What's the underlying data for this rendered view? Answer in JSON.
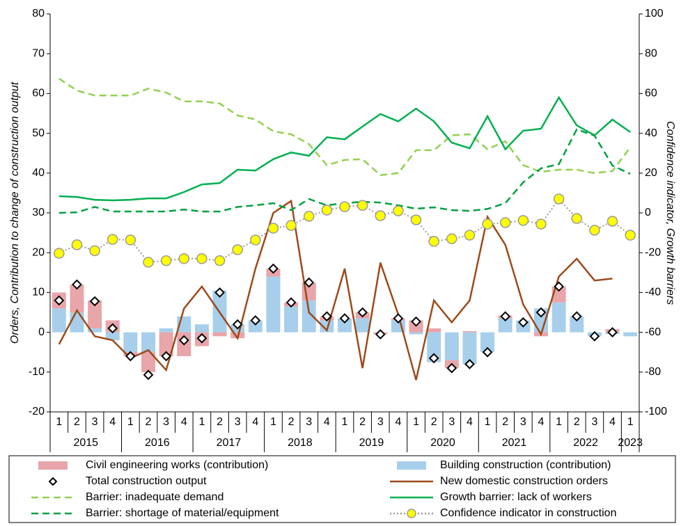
{
  "chart_data": {
    "type": "combo",
    "y_label": "Orders, Contribution to change of construction output",
    "y2_label": "Confidence indicator, Growth barriers",
    "categories": [
      "1",
      "2",
      "3",
      "4",
      "1",
      "2",
      "3",
      "4",
      "1",
      "2",
      "3",
      "4",
      "1",
      "2",
      "3",
      "4",
      "1",
      "2",
      "3",
      "4",
      "1",
      "2",
      "3",
      "4",
      "1",
      "2",
      "3",
      "4",
      "1",
      "2",
      "3",
      "4",
      "1"
    ],
    "years": [
      "2015",
      "2016",
      "2017",
      "2018",
      "2019",
      "2020",
      "2021",
      "2022",
      "2023"
    ],
    "ylim": [
      -20,
      80
    ],
    "yticks": [
      -20,
      -10,
      0,
      10,
      20,
      30,
      40,
      50,
      60,
      70,
      80
    ],
    "y2lim": [
      -100,
      100
    ],
    "y2ticks": [
      -100,
      -80,
      -60,
      -40,
      -20,
      0,
      20,
      40,
      60,
      80,
      100
    ],
    "series": [
      {
        "name": "Civil engineering works (contribution)",
        "type": "bar",
        "color": "#e8a5aa",
        "values": [
          4,
          7,
          7,
          3,
          -1,
          -5,
          -6,
          -6,
          -3.5,
          -1,
          -1.5,
          0,
          2,
          1,
          4.5,
          1,
          0,
          1.5,
          -0.5,
          0.5,
          3,
          1,
          -2,
          0.3,
          0,
          0.7,
          0,
          -1,
          4,
          0,
          0,
          0.8,
          0
        ]
      },
      {
        "name": "Building construction (contribution)",
        "type": "bar",
        "color": "#a7cfeb",
        "values": [
          6,
          5,
          1,
          -2,
          -5,
          -5,
          1,
          4,
          2,
          10.5,
          2,
          3,
          14,
          6.5,
          8,
          3,
          3.5,
          3.5,
          0,
          3,
          -0.5,
          -7.5,
          -7,
          -8,
          -5,
          3.5,
          3,
          6,
          7.5,
          4,
          -1,
          -0.5,
          -1
        ]
      },
      {
        "name": "Total construction output",
        "type": "marker",
        "color": "#000000",
        "values": [
          8,
          12,
          7.8,
          1,
          -6,
          -10.7,
          -6,
          -2,
          -1.5,
          10,
          2,
          3,
          16,
          7.5,
          12.5,
          4,
          3.5,
          5,
          -0.5,
          3.5,
          2.7,
          -6.5,
          -9,
          -8,
          -5,
          4,
          2.5,
          5,
          11.5,
          4,
          -1,
          0,
          null
        ]
      },
      {
        "name": "New domestic construction orders",
        "type": "line",
        "style": "solid",
        "color": "#9c4a1a",
        "values": [
          -3,
          5.5,
          -1,
          -2,
          -6.5,
          -4.5,
          -9.5,
          6,
          11.5,
          5,
          -1.5,
          16,
          30,
          33,
          5,
          0.5,
          16,
          -9,
          17.5,
          4.5,
          -12,
          8,
          2.5,
          8,
          29,
          22,
          7,
          -0.5,
          14,
          18.5,
          13,
          13.5,
          null
        ]
      },
      {
        "name": "Barrier: inadequate demand",
        "type": "line",
        "style": "dashed",
        "axis": "y2",
        "color": "#92d050",
        "values": [
          67.5,
          61.5,
          59,
          59,
          59,
          62.5,
          60.5,
          56,
          56,
          55,
          49,
          47,
          41,
          39.5,
          34.6,
          24,
          26.6,
          27,
          19,
          20,
          31.5,
          31.5,
          39,
          39.5,
          32,
          36,
          24,
          20.6,
          21.7,
          21.7,
          20,
          21,
          33
        ]
      },
      {
        "name": "Growth barrier: lack of workers",
        "type": "line",
        "style": "solid",
        "axis": "y2",
        "color": "#00b050",
        "values": [
          8.4,
          8,
          6.6,
          6.3,
          6.6,
          7.3,
          7.3,
          10.5,
          14.3,
          15,
          21.7,
          21.3,
          27,
          30.4,
          28.7,
          38,
          37,
          43.4,
          49.7,
          46,
          52.4,
          46,
          35.3,
          32.5,
          48.6,
          32,
          41.3,
          42.3,
          58,
          44,
          39,
          46.9,
          40.6
        ]
      },
      {
        "name": "Barrier: shortage of material/equipment",
        "type": "line",
        "style": "dashed",
        "axis": "y2",
        "color": "#00a040",
        "values": [
          0,
          0.3,
          3,
          0.7,
          0.7,
          0.7,
          0.7,
          1.7,
          0.7,
          0.7,
          3,
          3.8,
          4.9,
          1.4,
          7,
          3.8,
          4.9,
          5.6,
          5.2,
          3.8,
          2.1,
          2.8,
          1.4,
          1,
          2,
          4.9,
          15.4,
          22.4,
          24.5,
          42,
          38.8,
          23.8,
          19.6
        ]
      },
      {
        "name": "Confidence indicator in construction",
        "type": "dotline",
        "style": "dotted",
        "axis": "y2",
        "color": "#ffff00",
        "values": [
          -20.3,
          -16,
          -19,
          -13.3,
          -13.6,
          -24.8,
          -24,
          -23,
          -23,
          -24,
          -18.5,
          -13.6,
          -7.7,
          -6.3,
          -1.7,
          1.4,
          3.1,
          3.8,
          -1.4,
          1,
          -3.5,
          -14.3,
          -13,
          -11.2,
          -5.6,
          -4.9,
          -3.8,
          -5.6,
          7,
          -2.8,
          -8.7,
          -4.2,
          -11.2
        ]
      }
    ]
  }
}
